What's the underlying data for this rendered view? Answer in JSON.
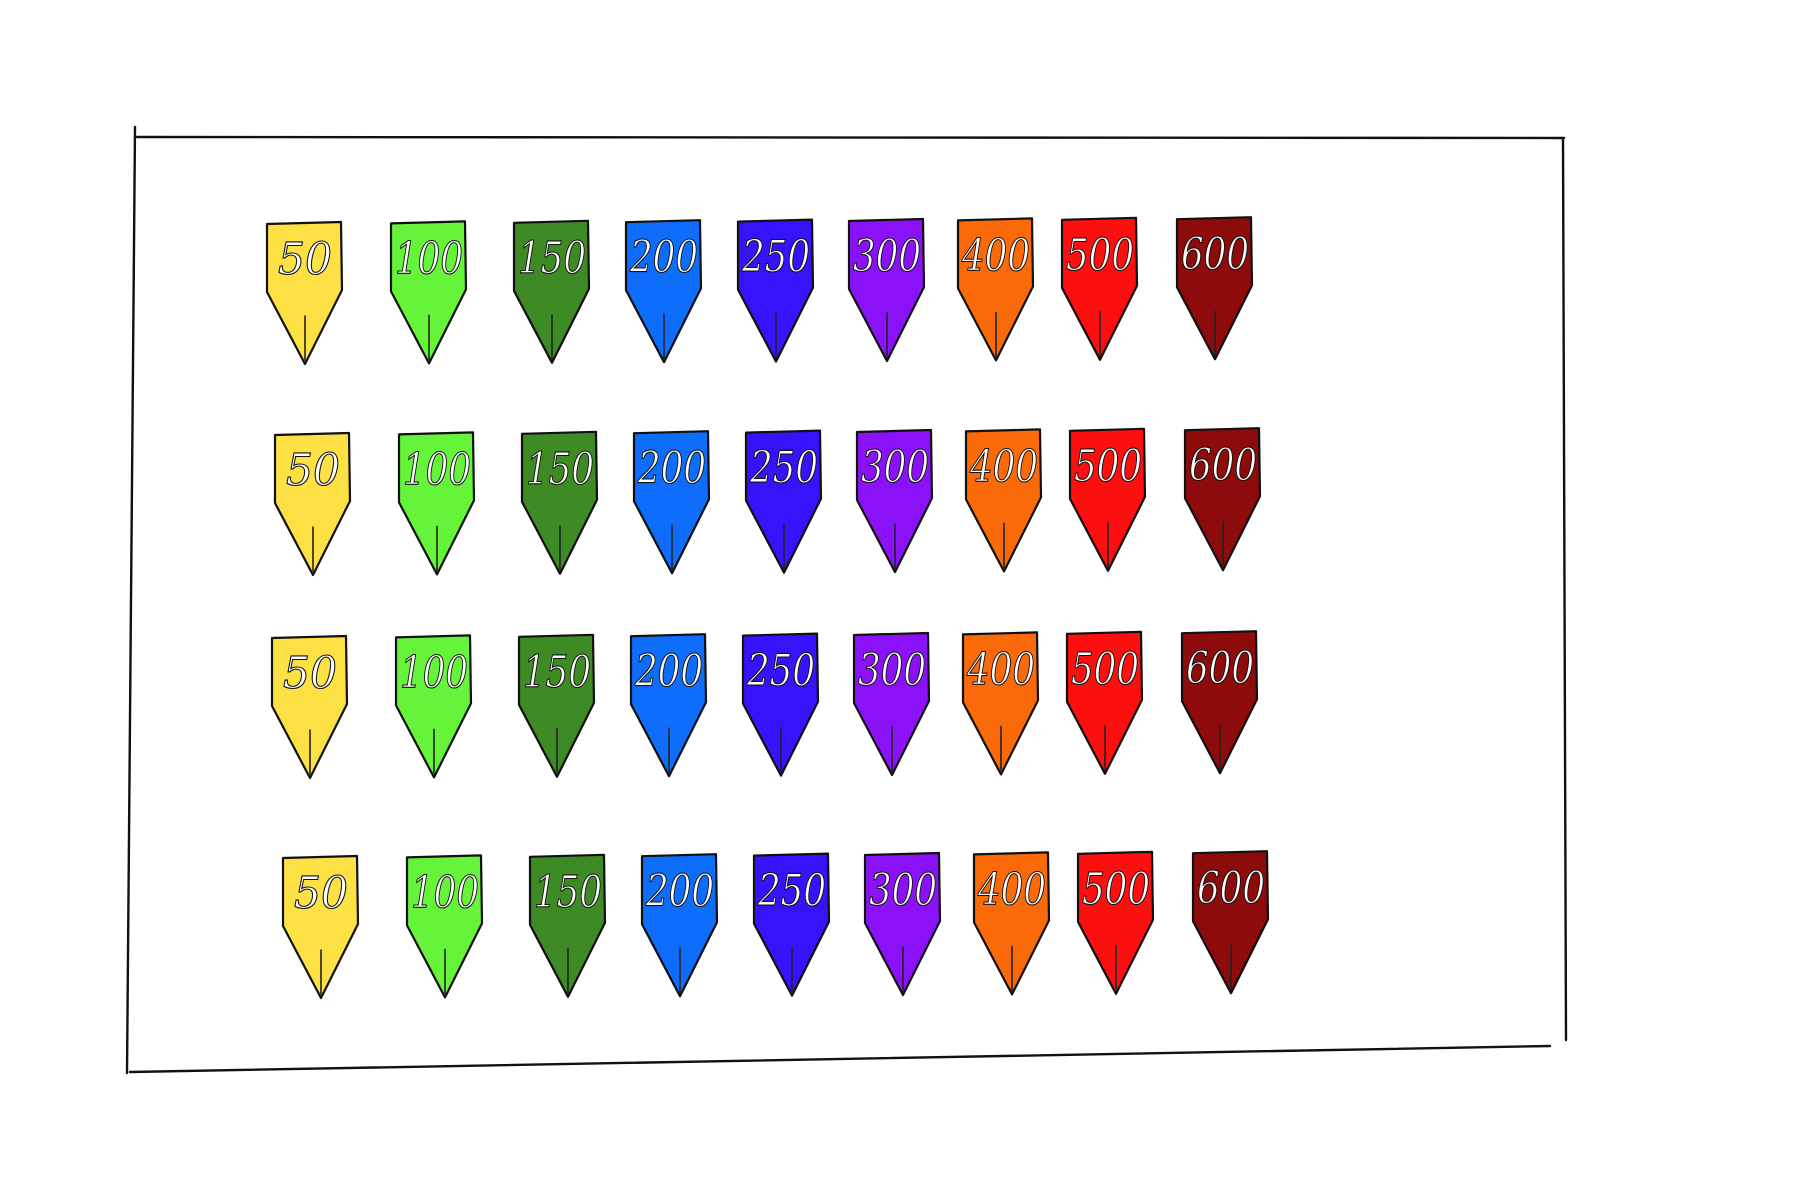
{
  "board": {
    "rows": [
      {
        "tags": [
          {
            "label": "50",
            "color": "#fde044"
          },
          {
            "label": "100",
            "color": "#66f43a"
          },
          {
            "label": "150",
            "color": "#3e8a24"
          },
          {
            "label": "200",
            "color": "#0f6dfb"
          },
          {
            "label": "250",
            "color": "#3513fb"
          },
          {
            "label": "300",
            "color": "#8b12f8"
          },
          {
            "label": "400",
            "color": "#fb6a09"
          },
          {
            "label": "500",
            "color": "#fb0f0f"
          },
          {
            "label": "600",
            "color": "#8d0b0b"
          }
        ]
      },
      {
        "tags": [
          {
            "label": "50",
            "color": "#fde044"
          },
          {
            "label": "100",
            "color": "#66f43a"
          },
          {
            "label": "150",
            "color": "#3e8a24"
          },
          {
            "label": "200",
            "color": "#0f6dfb"
          },
          {
            "label": "250",
            "color": "#3513fb"
          },
          {
            "label": "300",
            "color": "#8b12f8"
          },
          {
            "label": "400",
            "color": "#fb6a09"
          },
          {
            "label": "500",
            "color": "#fb0f0f"
          },
          {
            "label": "600",
            "color": "#8d0b0b"
          }
        ]
      },
      {
        "tags": [
          {
            "label": "50",
            "color": "#fde044"
          },
          {
            "label": "100",
            "color": "#66f43a"
          },
          {
            "label": "150",
            "color": "#3e8a24"
          },
          {
            "label": "200",
            "color": "#0f6dfb"
          },
          {
            "label": "250",
            "color": "#3513fb"
          },
          {
            "label": "300",
            "color": "#8b12f8"
          },
          {
            "label": "400",
            "color": "#fb6a09"
          },
          {
            "label": "500",
            "color": "#fb0f0f"
          },
          {
            "label": "600",
            "color": "#8d0b0b"
          }
        ]
      },
      {
        "tags": [
          {
            "label": "50",
            "color": "#fde044"
          },
          {
            "label": "100",
            "color": "#66f43a"
          },
          {
            "label": "150",
            "color": "#3e8a24"
          },
          {
            "label": "200",
            "color": "#0f6dfb"
          },
          {
            "label": "250",
            "color": "#3513fb"
          },
          {
            "label": "300",
            "color": "#8b12f8"
          },
          {
            "label": "400",
            "color": "#fb6a09"
          },
          {
            "label": "500",
            "color": "#fb0f0f"
          },
          {
            "label": "600",
            "color": "#8d0b0b"
          }
        ]
      }
    ]
  }
}
